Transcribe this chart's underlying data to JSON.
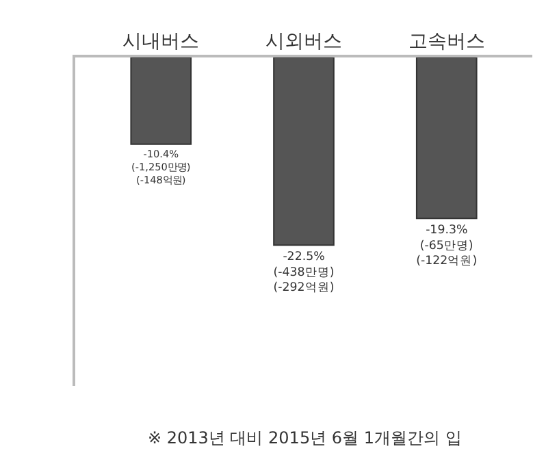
{
  "chart_data": {
    "type": "bar",
    "categories": [
      "시내버스",
      "시외버스",
      "고속버스"
    ],
    "values": [
      -10.4,
      -22.5,
      -19.3
    ],
    "color": "#555555",
    "value_labels": [
      "-10.4%\n(-1,250만명)\n(-148억원)",
      "-22.5%\n(-438만명)\n(-292억원)",
      "-19.3%\n(-65만명)\n(-122억원)"
    ],
    "annotations": [
      "※ 2013년 대비 2015년 6월 1개월간의 입"
    ]
  }
}
